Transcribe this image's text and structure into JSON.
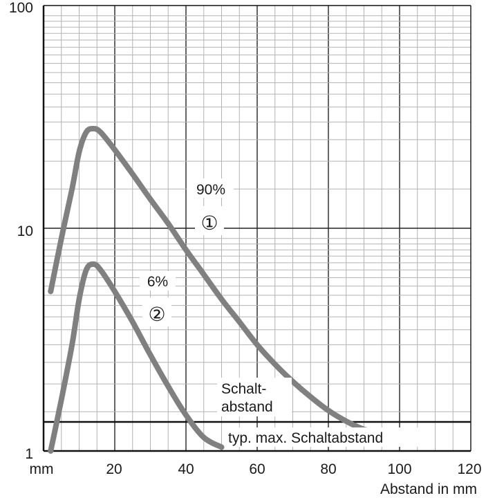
{
  "chart_data": {
    "type": "line",
    "xlabel": "Abstand in mm",
    "x_unit_label": "mm",
    "xlim": [
      0,
      120
    ],
    "ylim": [
      1,
      100
    ],
    "y_scale": "log",
    "x_ticks": [
      "20",
      "40",
      "60",
      "80",
      "100",
      "120"
    ],
    "y_ticks": [
      "1",
      "10",
      "100"
    ],
    "grid": true,
    "series": [
      {
        "name": "90%",
        "marker": "①",
        "color": "#808080",
        "x": [
          2,
          5,
          8,
          10,
          12,
          14,
          16,
          20,
          25,
          30,
          35,
          40,
          45,
          50,
          55,
          60,
          65,
          70,
          75,
          80,
          85,
          90,
          93
        ],
        "y": [
          5.2,
          9,
          15,
          22,
          27,
          28,
          27,
          22.5,
          17.5,
          13.5,
          10.5,
          8,
          6.2,
          4.8,
          3.8,
          3.0,
          2.45,
          2.05,
          1.75,
          1.52,
          1.36,
          1.25,
          1.22
        ]
      },
      {
        "name": "6%",
        "marker": "②",
        "color": "#808080",
        "x": [
          2,
          5,
          8,
          10,
          12,
          14,
          16,
          20,
          25,
          30,
          35,
          40,
          45,
          50
        ],
        "y": [
          1.0,
          1.7,
          3.0,
          4.8,
          6.5,
          6.9,
          6.5,
          5.2,
          3.8,
          2.7,
          1.95,
          1.45,
          1.15,
          1.04
        ]
      }
    ],
    "annotations": {
      "schaltabstand_line1": "Schalt-",
      "schaltabstand_line2": "abstand",
      "typ_max_label": "typ. max. Schaltabstand",
      "typ_max_value": 1.35
    }
  }
}
